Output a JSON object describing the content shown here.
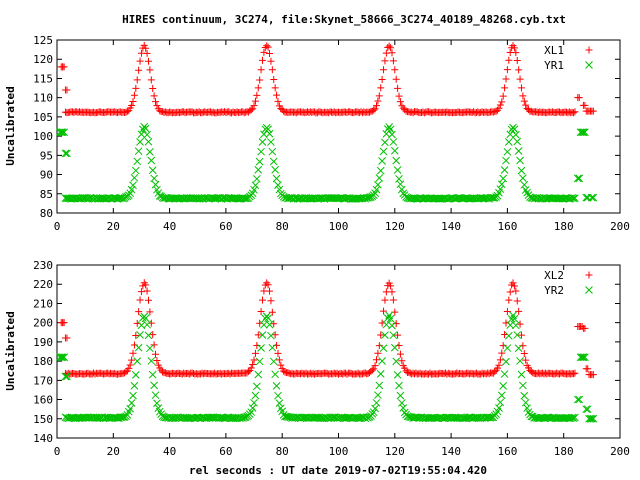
{
  "title": "HIRES continuum, 3C274, file:Skynet_58666_3C274_40189_48268.cyb.txt",
  "xlabel": "rel seconds : UT date 2019-07-02T19:55:04.420",
  "chart_data": [
    {
      "type": "scatter",
      "ylabel": "Uncalibrated",
      "xlim": [
        0,
        200
      ],
      "ylim": [
        80,
        125
      ],
      "x_ticks": [
        "0",
        "20",
        "40",
        "60",
        "80",
        "100",
        "120",
        "140",
        "160",
        "180",
        "200"
      ],
      "y_ticks": [
        "80",
        "85",
        "90",
        "95",
        "100",
        "105",
        "110",
        "115",
        "120",
        "125"
      ],
      "x_tick_values": [
        0,
        20,
        40,
        60,
        80,
        100,
        120,
        140,
        160,
        180,
        200
      ],
      "y_tick_values": [
        80,
        85,
        90,
        95,
        100,
        105,
        110,
        115,
        120,
        125
      ],
      "legend_position": "top-right",
      "series": [
        {
          "name": "XL1",
          "marker": "plus",
          "color": "#ff0000",
          "baseline": 106.2,
          "peak_height": 17.3,
          "peaks": [
            31,
            74.5,
            118,
            162
          ],
          "peak_sigma": 2.1,
          "x_range": [
            3,
            184
          ],
          "edge_points": [
            [
              1.5,
              118
            ],
            [
              2,
              118
            ],
            [
              3,
              112
            ],
            [
              185,
              110
            ],
            [
              187,
              108
            ],
            [
              188,
              106.5
            ],
            [
              189,
              106.5
            ],
            [
              190,
              106.5
            ]
          ]
        },
        {
          "name": "YR1",
          "marker": "cross",
          "color": "#00c000",
          "baseline": 83.8,
          "peak_height": 18.5,
          "peaks": [
            31,
            74.5,
            118,
            162
          ],
          "peak_sigma": 2.2,
          "x_range": [
            3,
            184
          ],
          "edge_points": [
            [
              1,
              101
            ],
            [
              2,
              101
            ],
            [
              3,
              95.5
            ],
            [
              185,
              89
            ],
            [
              186,
              101
            ],
            [
              187,
              101
            ],
            [
              188,
              84
            ],
            [
              190,
              84
            ]
          ]
        }
      ]
    },
    {
      "type": "scatter",
      "ylabel": "Uncalibrated",
      "xlim": [
        0,
        200
      ],
      "ylim": [
        140,
        230
      ],
      "x_ticks": [
        "0",
        "20",
        "40",
        "60",
        "80",
        "100",
        "120",
        "140",
        "160",
        "180",
        "200"
      ],
      "y_ticks": [
        "140",
        "150",
        "160",
        "170",
        "180",
        "190",
        "200",
        "210",
        "220",
        "230"
      ],
      "x_tick_values": [
        0,
        20,
        40,
        60,
        80,
        100,
        120,
        140,
        160,
        180,
        200
      ],
      "y_tick_values": [
        140,
        150,
        160,
        170,
        180,
        190,
        200,
        210,
        220,
        230
      ],
      "legend_position": "top-right",
      "series": [
        {
          "name": "XL2",
          "marker": "plus",
          "color": "#ff0000",
          "baseline": 173.5,
          "peak_height": 47,
          "peaks": [
            31,
            74.5,
            118,
            162
          ],
          "peak_sigma": 2.3,
          "x_range": [
            3,
            184
          ],
          "edge_points": [
            [
              1.5,
              200
            ],
            [
              2,
              200
            ],
            [
              3,
              192
            ],
            [
              185,
              198
            ],
            [
              186,
              198
            ],
            [
              187,
              197
            ],
            [
              188,
              176
            ],
            [
              189,
              173
            ],
            [
              190,
              173
            ]
          ]
        },
        {
          "name": "YR2",
          "marker": "cross",
          "color": "#00c000",
          "baseline": 150.5,
          "peak_height": 53,
          "peaks": [
            31,
            74.5,
            118,
            162
          ],
          "peak_sigma": 2.3,
          "x_range": [
            3,
            184
          ],
          "edge_points": [
            [
              1,
              182
            ],
            [
              2,
              182
            ],
            [
              3,
              172
            ],
            [
              185,
              160
            ],
            [
              186,
              182
            ],
            [
              187,
              182
            ],
            [
              188,
              155
            ],
            [
              189,
              150
            ],
            [
              190,
              150
            ]
          ]
        }
      ]
    }
  ]
}
